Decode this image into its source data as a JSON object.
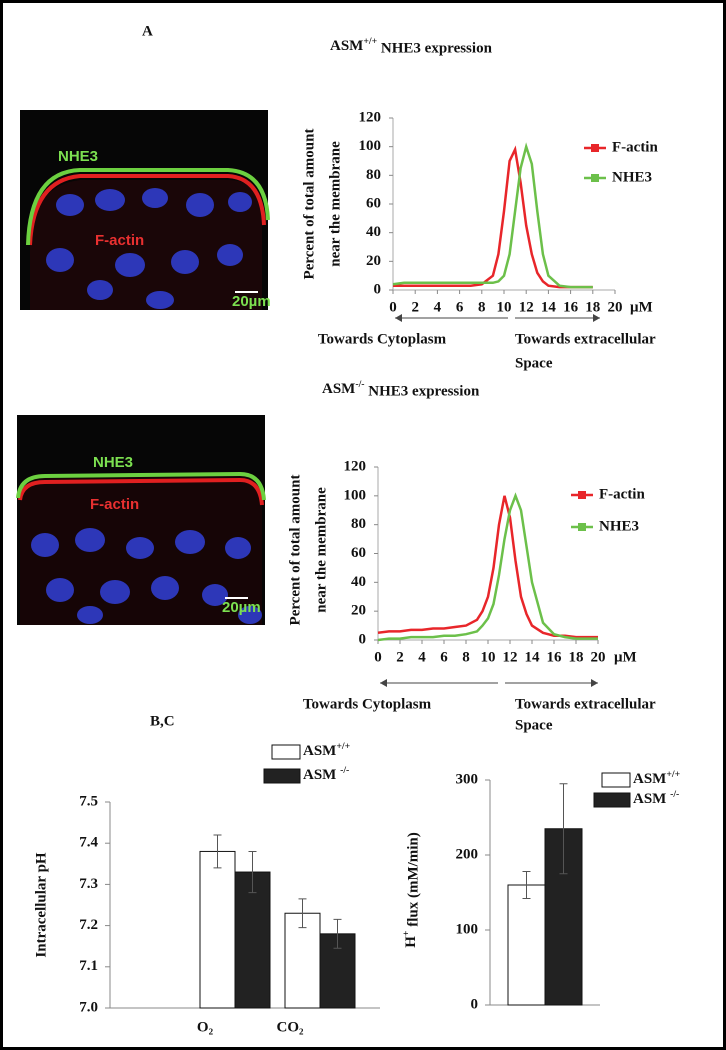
{
  "panel_labels": [
    "A",
    "B,C"
  ],
  "images": [
    {
      "labels": [
        "NHE3",
        "F-actin"
      ],
      "scale_bar": "20µm"
    },
    {
      "labels": [
        "NHE3",
        "F-actin"
      ],
      "scale_bar": "20µm"
    }
  ],
  "chart_data": [
    {
      "type": "line",
      "title": "ASM+/+ NHE3 expression",
      "y_label": [
        "Percent of total amount",
        "near the membrane"
      ],
      "x": [
        0,
        1,
        2,
        3,
        4,
        5,
        6,
        7,
        8,
        9,
        9.5,
        10,
        10.5,
        11,
        11.5,
        12,
        12.5,
        13,
        13.5,
        14,
        15,
        16,
        17,
        18
      ],
      "series": [
        {
          "name": "F-actin",
          "color": "#e8262a",
          "values": [
            3,
            3,
            3,
            3,
            3,
            3,
            3,
            3,
            4,
            10,
            25,
            55,
            90,
            98,
            75,
            45,
            25,
            12,
            6,
            3,
            2,
            2,
            2,
            2
          ]
        },
        {
          "name": "NHE3",
          "color": "#6cc04a",
          "values": [
            4,
            5,
            5,
            5,
            5,
            5,
            5,
            5,
            5,
            5,
            6,
            10,
            25,
            55,
            85,
            100,
            88,
            55,
            25,
            10,
            3,
            2,
            2,
            2
          ]
        }
      ],
      "xlim": [
        0,
        20
      ],
      "xticks": [
        0,
        2,
        4,
        6,
        8,
        10,
        12,
        14,
        16,
        18,
        20
      ],
      "x_unit": "μM",
      "ylim": [
        0,
        120
      ],
      "yticks": [
        0,
        20,
        40,
        60,
        80,
        100,
        120
      ],
      "annotations": [
        "Towards Cytoplasm",
        "Towards extracellular",
        "Space"
      ]
    },
    {
      "type": "line",
      "title": "ASM-/- NHE3 expression",
      "y_label": [
        "Percent of total amount",
        "near the membrane"
      ],
      "x": [
        0,
        1,
        2,
        3,
        4,
        5,
        6,
        7,
        8,
        9,
        9.5,
        10,
        10.5,
        11,
        11.5,
        12,
        12.5,
        13,
        13.5,
        14,
        15,
        16,
        17,
        18,
        19,
        20
      ],
      "series": [
        {
          "name": "F-actin",
          "color": "#e8262a",
          "values": [
            5,
            6,
            6,
            7,
            7,
            8,
            8,
            9,
            10,
            14,
            20,
            30,
            50,
            80,
            100,
            85,
            55,
            30,
            18,
            10,
            5,
            3,
            3,
            2,
            2,
            2
          ]
        },
        {
          "name": "NHE3",
          "color": "#6cc04a",
          "values": [
            0,
            1,
            1,
            2,
            2,
            2,
            3,
            3,
            4,
            6,
            10,
            15,
            25,
            45,
            70,
            90,
            100,
            90,
            65,
            40,
            12,
            4,
            2,
            1,
            1,
            1
          ]
        }
      ],
      "xlim": [
        0,
        20
      ],
      "xticks": [
        0,
        2,
        4,
        6,
        8,
        10,
        12,
        14,
        16,
        18,
        20
      ],
      "x_unit": "μM",
      "ylim": [
        0,
        120
      ],
      "yticks": [
        0,
        20,
        40,
        60,
        80,
        100,
        120
      ],
      "annotations": [
        "Towards Cytoplasm",
        "Towards extracellular",
        "Space"
      ]
    },
    {
      "type": "bar",
      "y_label": "Intracellular pH",
      "categories": [
        "O₂",
        "CO₂"
      ],
      "series": [
        {
          "name": "ASM+/+",
          "color": "#ffffff",
          "values": [
            7.38,
            7.23
          ],
          "errors": [
            0.04,
            0.035
          ]
        },
        {
          "name": "ASM -/-",
          "color": "#222222",
          "values": [
            7.33,
            7.18
          ],
          "errors": [
            0.05,
            0.035
          ]
        }
      ],
      "ylim": [
        7,
        7.5
      ],
      "yticks": [
        {
          "value": 7,
          "label": "7.0"
        },
        7.1,
        7.2,
        7.3,
        7.4,
        7.5
      ]
    },
    {
      "type": "bar",
      "y_label": "H+ flux (mM/min)",
      "series": [
        {
          "name": "ASM+/+",
          "color": "#ffffff",
          "values": [
            160
          ],
          "errors": [
            18
          ]
        },
        {
          "name": "ASM -/-",
          "color": "#222222",
          "values": [
            235
          ],
          "errors": [
            60
          ]
        }
      ],
      "ylim": [
        0,
        300
      ],
      "yticks": [
        0,
        100,
        200,
        300
      ]
    }
  ]
}
